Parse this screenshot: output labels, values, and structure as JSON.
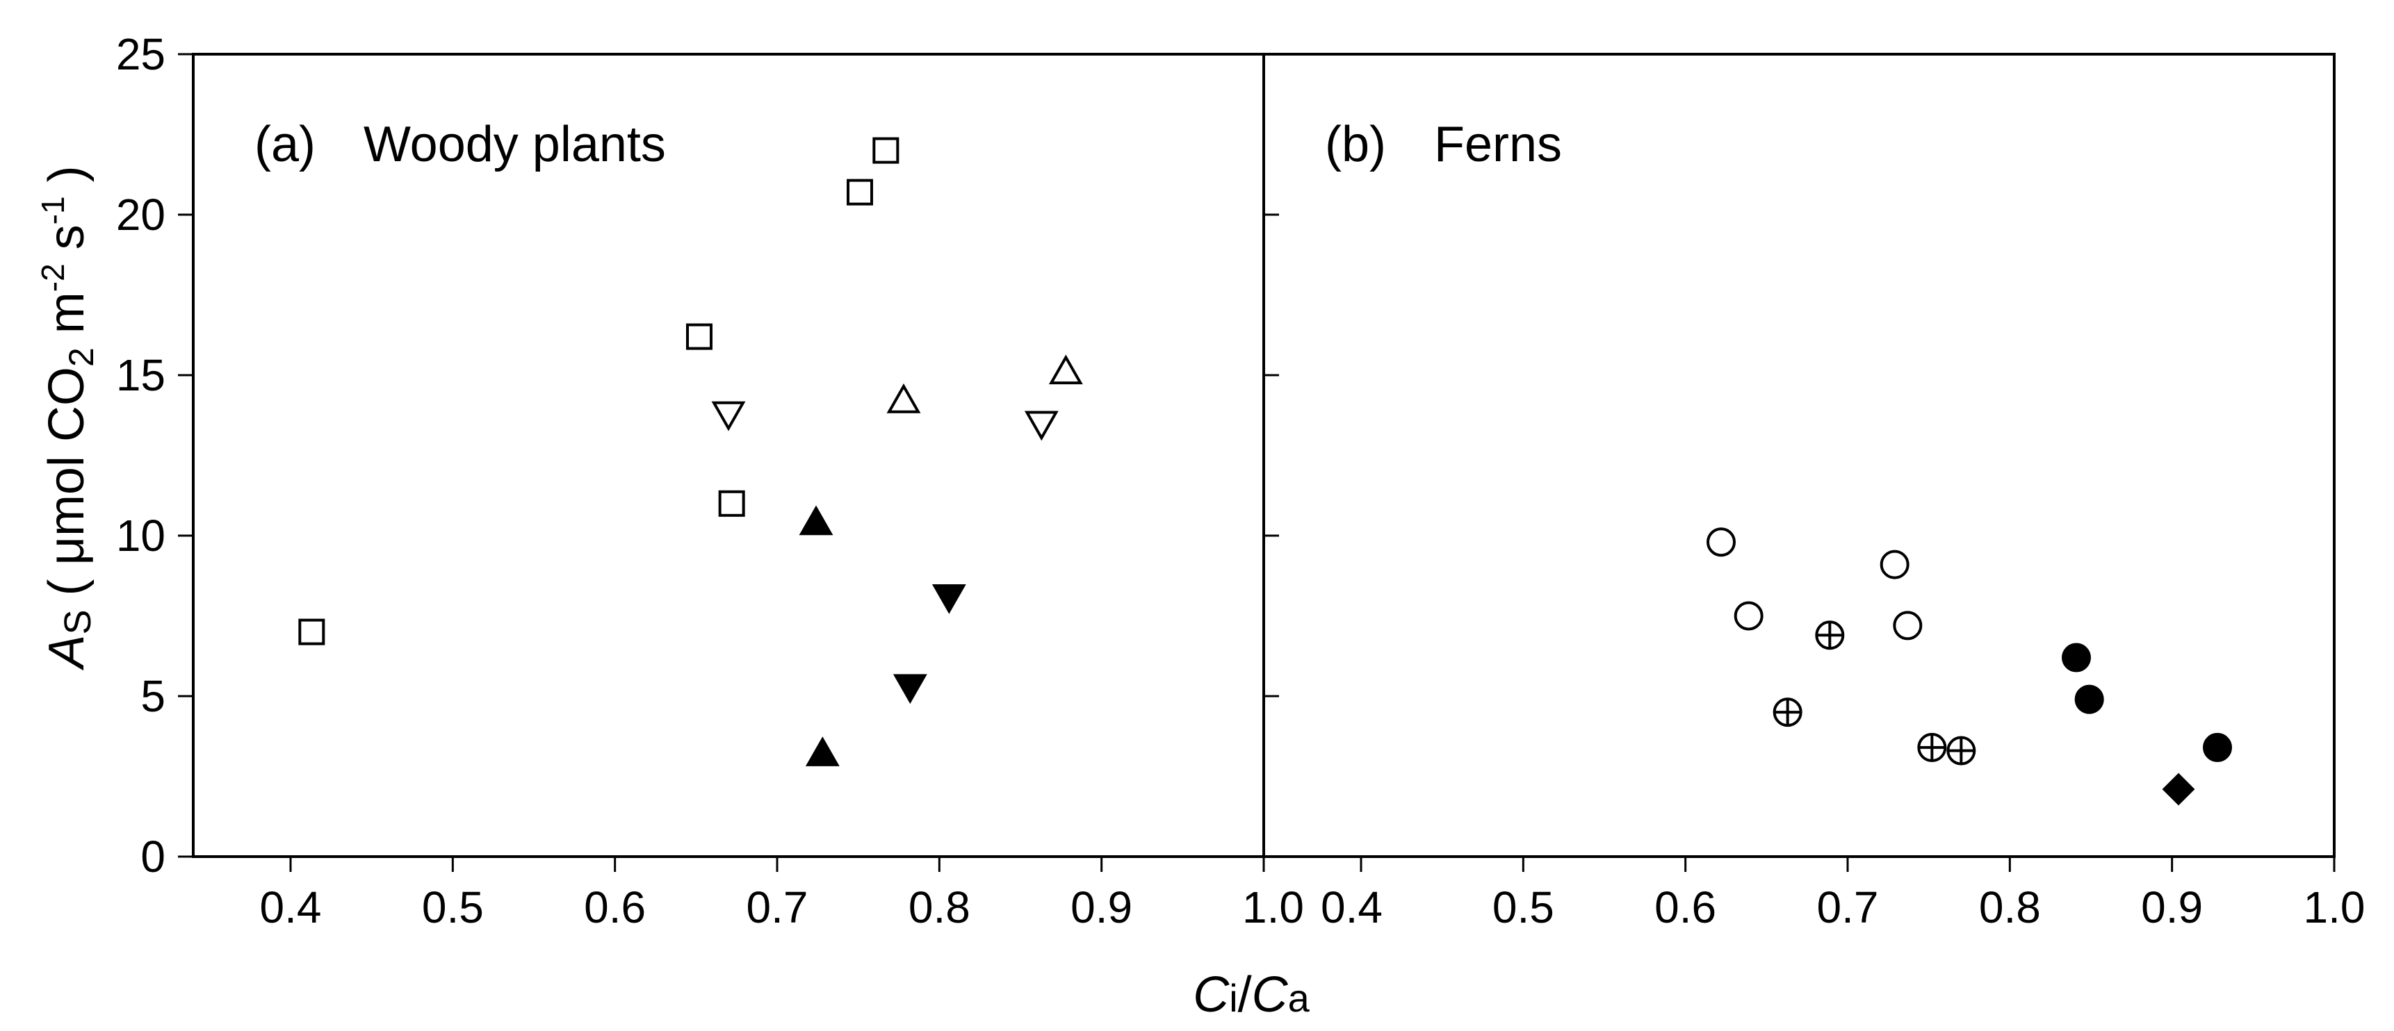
{
  "chart_data": [
    {
      "type": "scatter",
      "panel_label": "(a)",
      "title": "Woody plants",
      "xlim": [
        0.34,
        1.0
      ],
      "ylim": [
        0,
        25
      ],
      "x_ticks": [
        "0.4",
        "0.5",
        "0.6",
        "0.7",
        "0.8",
        "0.9",
        "1.0"
      ],
      "x_tick_values": [
        0.4,
        0.5,
        0.6,
        0.7,
        0.8,
        0.9,
        1.0
      ],
      "y_ticks": [
        "0",
        "5",
        "10",
        "15",
        "20",
        "25"
      ],
      "y_tick_values": [
        0,
        5,
        10,
        15,
        20,
        25
      ],
      "series": [
        {
          "marker": "square-open",
          "points": [
            [
              0.413,
              7.0
            ],
            [
              0.652,
              16.2
            ],
            [
              0.672,
              11.0
            ],
            [
              0.751,
              20.7
            ],
            [
              0.767,
              22.0
            ]
          ]
        },
        {
          "marker": "triangle-down-open",
          "points": [
            [
              0.67,
              13.8
            ],
            [
              0.863,
              13.5
            ]
          ]
        },
        {
          "marker": "triangle-up-open",
          "points": [
            [
              0.778,
              14.2
            ],
            [
              0.878,
              15.1
            ]
          ]
        },
        {
          "marker": "triangle-up-filled",
          "points": [
            [
              0.724,
              10.4
            ],
            [
              0.728,
              3.2
            ]
          ]
        },
        {
          "marker": "triangle-down-filled",
          "points": [
            [
              0.782,
              5.3
            ],
            [
              0.806,
              8.1
            ]
          ]
        }
      ]
    },
    {
      "type": "scatter",
      "panel_label": "(b)",
      "title": "Ferns",
      "xlim": [
        0.34,
        1.0
      ],
      "ylim": [
        0,
        25
      ],
      "x_ticks": [
        "0.4",
        "0.5",
        "0.6",
        "0.7",
        "0.8",
        "0.9",
        "1.0"
      ],
      "x_tick_values": [
        0.4,
        0.5,
        0.6,
        0.7,
        0.8,
        0.9,
        1.0
      ],
      "series": [
        {
          "marker": "circle-open",
          "points": [
            [
              0.622,
              9.8
            ],
            [
              0.639,
              7.5
            ],
            [
              0.729,
              9.1
            ],
            [
              0.737,
              7.2
            ]
          ]
        },
        {
          "marker": "circle-plus",
          "points": [
            [
              0.663,
              4.5
            ],
            [
              0.689,
              6.9
            ],
            [
              0.752,
              3.4
            ],
            [
              0.77,
              3.3
            ]
          ]
        },
        {
          "marker": "circle-filled",
          "points": [
            [
              0.841,
              6.2
            ],
            [
              0.849,
              4.9
            ],
            [
              0.928,
              3.4
            ]
          ]
        },
        {
          "marker": "diamond-filled",
          "points": [
            [
              0.904,
              2.1
            ]
          ]
        }
      ]
    }
  ],
  "axes": {
    "ylabel": {
      "italic": "A",
      "sub": "S",
      "rest": " ( μmol CO",
      "co2_sub": "2",
      "rest2": " m",
      "sup1": "-2",
      "rest3": " s",
      "sup2": "-1",
      "rest4": " )"
    },
    "xlabel": {
      "ci": "C",
      "ci_sub": "i",
      "slash": "/",
      "ca": "C",
      "ca_sub": "a"
    }
  }
}
